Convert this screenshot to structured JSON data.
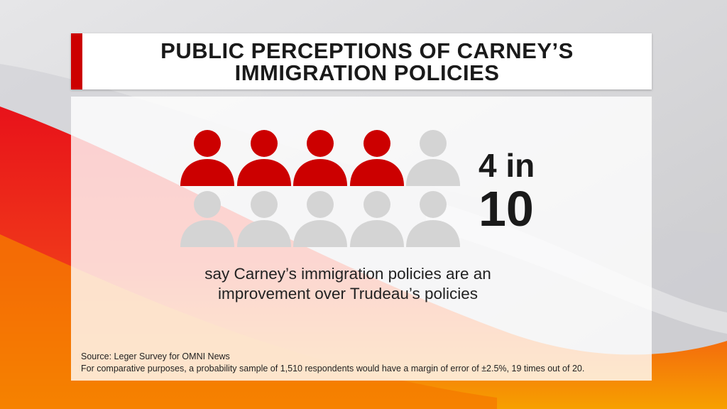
{
  "title": {
    "line1": "PUBLIC PERCEPTIONS OF CARNEY’S",
    "line2": "IMMIGRATION POLICIES"
  },
  "icons": {
    "total": 10,
    "highlighted": 4,
    "icon": "person-icon",
    "highlight_color": "#cc0000",
    "base_color": "#d4d4d4"
  },
  "stat": {
    "line1": "4 in",
    "line2": "10"
  },
  "caption": {
    "line1": "say Carney’s immigration policies are an",
    "line2": "improvement over Trudeau’s policies"
  },
  "source": {
    "line1": "Source: Leger Survey for OMNI News",
    "line2": "For comparative purposes, a probability sample of 1,510 respondents would have a margin of error of ±2.5%, 19 times out of 20."
  },
  "colors": {
    "accent": "#cc0000",
    "background_orange": "#f57a00"
  }
}
